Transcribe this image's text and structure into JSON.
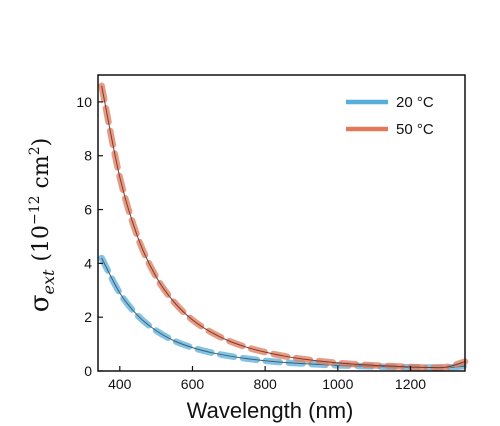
{
  "chart_data": {
    "type": "line",
    "title": "",
    "xlabel": "Wavelength (nm)",
    "ylabel": {
      "symbol": "σ",
      "subscript": "ext",
      "unit_open": "(10",
      "unit_exp": "−12",
      "unit_mid": " cm",
      "unit_exp2": "2",
      "unit_close": ")"
    },
    "xlim": [
      340,
      1350
    ],
    "ylim": [
      0,
      11
    ],
    "xticks": [
      400,
      600,
      800,
      1000,
      1200
    ],
    "yticks": [
      0,
      2,
      4,
      6,
      8,
      10
    ],
    "grid": false,
    "legend_position": "top-right",
    "series": [
      {
        "name": "20 °C",
        "color": "#5aaedc",
        "x": [
          350,
          400,
          450,
          500,
          550,
          600,
          650,
          700,
          750,
          800,
          850,
          900,
          950,
          1000,
          1050,
          1100,
          1150,
          1200,
          1250,
          1300,
          1350
        ],
        "y": [
          4.2,
          2.9,
          2.05,
          1.5,
          1.12,
          0.87,
          0.69,
          0.56,
          0.46,
          0.38,
          0.32,
          0.28,
          0.24,
          0.21,
          0.19,
          0.17,
          0.15,
          0.14,
          0.13,
          0.13,
          0.18
        ]
      },
      {
        "name": "50 °C",
        "color": "#e07a5a",
        "x": [
          350,
          400,
          450,
          500,
          550,
          600,
          650,
          700,
          750,
          800,
          850,
          900,
          950,
          1000,
          1050,
          1100,
          1150,
          1200,
          1250,
          1300,
          1350
        ],
        "y": [
          10.6,
          7.2,
          4.95,
          3.5,
          2.55,
          1.9,
          1.45,
          1.12,
          0.88,
          0.7,
          0.56,
          0.45,
          0.37,
          0.3,
          0.25,
          0.21,
          0.18,
          0.15,
          0.13,
          0.15,
          0.35
        ]
      }
    ]
  }
}
